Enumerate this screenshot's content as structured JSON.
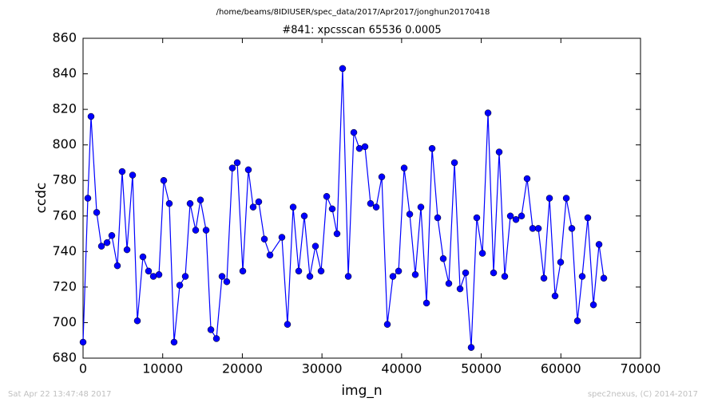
{
  "chart_data": {
    "type": "line",
    "suptitle": "/home/beams/8IDIUSER/spec_data/2017/Apr2017/jonghun20170418",
    "title": "#841: xpcsscan 65536 0.0005",
    "xlabel": "img_n",
    "ylabel": "ccdc",
    "footer_left": "Sat Apr 22 13:47:48 2017",
    "footer_right": "spec2nexus, (C) 2014-2017",
    "color": "#0000ff",
    "x": [
      0,
      600,
      1000,
      1710,
      2310,
      3010,
      3610,
      4310,
      4910,
      5520,
      6220,
      6820,
      7520,
      8220,
      8830,
      9530,
      10130,
      10830,
      11430,
      12140,
      12840,
      13440,
      14140,
      14740,
      15450,
      16050,
      16750,
      17450,
      18050,
      18750,
      19360,
      20060,
      20760,
      21360,
      22060,
      22770,
      23470,
      24970,
      25670,
      26380,
      27080,
      27780,
      28480,
      29180,
      29890,
      30590,
      31290,
      31890,
      32590,
      33300,
      34000,
      34700,
      35400,
      36100,
      36810,
      37510,
      38210,
      38910,
      39620,
      40320,
      41020,
      41720,
      42420,
      43130,
      43830,
      44530,
      45230,
      45930,
      46640,
      47340,
      48040,
      48740,
      49440,
      50150,
      50850,
      51550,
      52250,
      52950,
      53660,
      54360,
      55060,
      55760,
      56460,
      57170,
      57870,
      58570,
      59270,
      59970,
      60680,
      61380,
      62080,
      62680,
      63380,
      64090,
      64790,
      65390
    ],
    "values": [
      689,
      770,
      816,
      762,
      743,
      745,
      749,
      732,
      785,
      741,
      783,
      701,
      737,
      729,
      726,
      727,
      780,
      767,
      689,
      721,
      726,
      767,
      752,
      769,
      752,
      696,
      691,
      726,
      723,
      787,
      790,
      729,
      786,
      765,
      768,
      747,
      738,
      748,
      699,
      765,
      729,
      760,
      726,
      743,
      729,
      771,
      764,
      750,
      843,
      726,
      807,
      798,
      799,
      767,
      765,
      782,
      699,
      726,
      729,
      787,
      761,
      727,
      765,
      711,
      798,
      759,
      736,
      722,
      790,
      719,
      728,
      686,
      759,
      739,
      818,
      728,
      796,
      726,
      760,
      758,
      760,
      781,
      753,
      753,
      725,
      770,
      715,
      734,
      770,
      753,
      701,
      726,
      759,
      710,
      744,
      725
    ],
    "xlim": [
      0,
      70000
    ],
    "ylim": [
      680,
      860
    ],
    "xticks": [
      0,
      10000,
      20000,
      30000,
      40000,
      50000,
      60000,
      70000
    ],
    "yticks": [
      680,
      700,
      720,
      740,
      760,
      780,
      800,
      820,
      840,
      860
    ]
  }
}
